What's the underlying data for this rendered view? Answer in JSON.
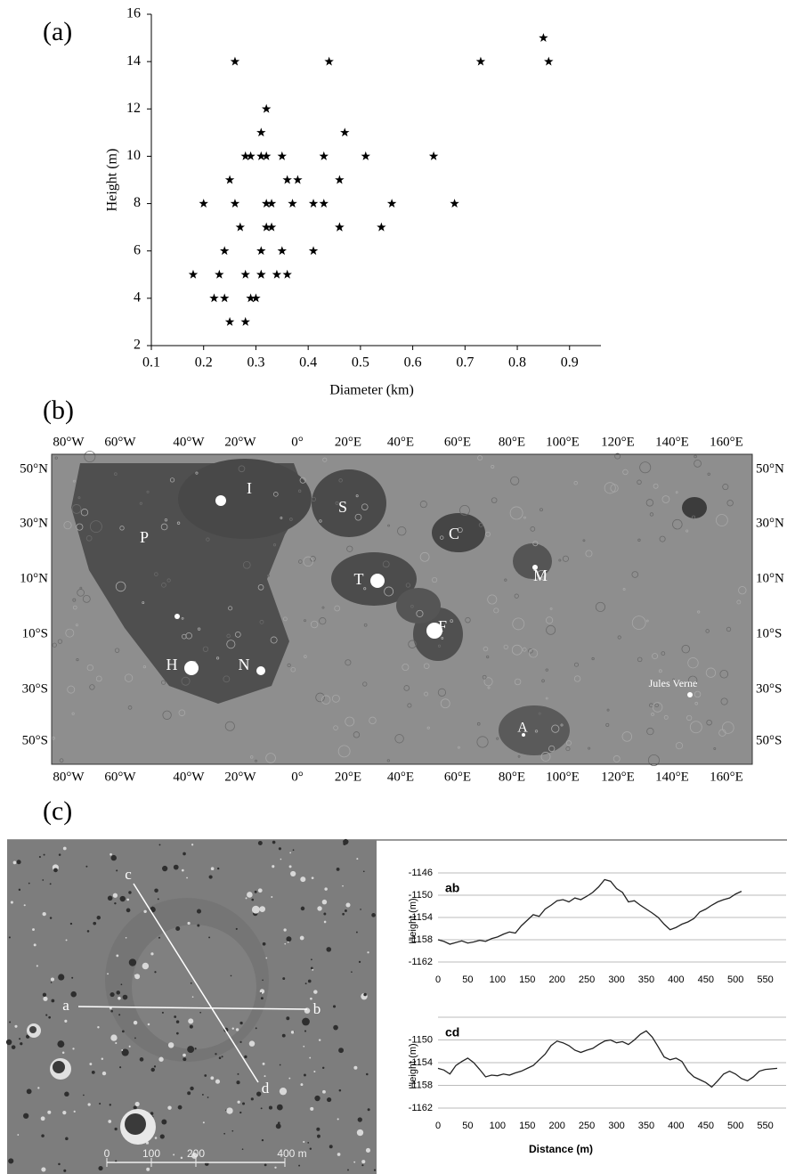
{
  "panel_labels": [
    "(a)",
    "(b)",
    "(c)"
  ],
  "chart_data": [
    {
      "type": "scatter",
      "x_label": "Diameter (km)",
      "y_label": "Height (m)",
      "marker": "star",
      "color": "#000000",
      "x": [
        0.26,
        0.44,
        0.73,
        0.85,
        0.86,
        0.32,
        0.31,
        0.47,
        0.28,
        0.29,
        0.31,
        0.32,
        0.35,
        0.43,
        0.51,
        0.64,
        0.25,
        0.36,
        0.38,
        0.46,
        0.2,
        0.26,
        0.32,
        0.33,
        0.37,
        0.41,
        0.43,
        0.56,
        0.68,
        0.27,
        0.32,
        0.33,
        0.46,
        0.46,
        0.54,
        0.24,
        0.31,
        0.35,
        0.41,
        0.18,
        0.23,
        0.28,
        0.31,
        0.31,
        0.34,
        0.36,
        0.22,
        0.24,
        0.29,
        0.3,
        0.25,
        0.28
      ],
      "values": [
        14,
        14,
        14,
        15,
        14,
        12,
        11,
        11,
        10,
        10,
        10,
        10,
        10,
        10,
        10,
        10,
        9,
        9,
        9,
        9,
        8,
        8,
        8,
        8,
        8,
        8,
        8,
        8,
        8,
        7,
        7,
        7,
        7,
        7,
        7,
        6,
        6,
        6,
        6,
        5,
        5,
        5,
        5,
        5,
        5,
        5,
        4,
        4,
        4,
        4,
        3,
        3
      ],
      "xlim": [
        0.1,
        0.96
      ],
      "xticks": [
        0.1,
        0.2,
        0.3,
        0.4,
        0.5,
        0.6,
        0.7,
        0.8,
        0.9
      ],
      "ylim": [
        2,
        16
      ],
      "yticks": [
        2,
        4,
        6,
        8,
        10,
        12,
        14,
        16
      ],
      "grid": false
    },
    {
      "type": "line",
      "title": "ab",
      "y_label": "Height (m)",
      "color": "#222222",
      "x": [
        0,
        10,
        20,
        30,
        40,
        50,
        60,
        70,
        80,
        90,
        100,
        110,
        120,
        130,
        140,
        150,
        160,
        170,
        180,
        190,
        200,
        210,
        220,
        230,
        240,
        250,
        260,
        270,
        280,
        290,
        300,
        310,
        320,
        330,
        340,
        350,
        360,
        370,
        380,
        390,
        400,
        410,
        420,
        430,
        440,
        450,
        460,
        470,
        480,
        490,
        500,
        510
      ],
      "values": [
        -1158,
        -1158.3,
        -1158.8,
        -1158.5,
        -1158.2,
        -1158.6,
        -1158.4,
        -1158.1,
        -1158.3,
        -1157.8,
        -1157.5,
        -1157,
        -1156.6,
        -1156.8,
        -1155.5,
        -1154.5,
        -1153.5,
        -1153.8,
        -1152.5,
        -1151.8,
        -1151,
        -1150.8,
        -1151.2,
        -1150.5,
        -1150.8,
        -1150.2,
        -1149.5,
        -1148.5,
        -1147.2,
        -1147.5,
        -1148.8,
        -1149.5,
        -1151.2,
        -1151,
        -1151.8,
        -1152.5,
        -1153.2,
        -1154,
        -1155.2,
        -1156.2,
        -1155.8,
        -1155.2,
        -1154.8,
        -1154.2,
        -1153,
        -1152.5,
        -1151.8,
        -1151.2,
        -1150.8,
        -1150.5,
        -1149.8,
        -1149.3
      ],
      "xlim": [
        0,
        585
      ],
      "xticks": [
        0,
        50,
        100,
        150,
        200,
        250,
        300,
        350,
        400,
        450,
        500,
        550
      ],
      "ylim": [
        -1162,
        -1146
      ],
      "yticks": [
        -1146,
        -1150,
        -1154,
        -1158,
        -1162
      ],
      "grid": true
    },
    {
      "type": "line",
      "title": "cd",
      "y_label": "Height (m)",
      "x_label": "Distance (m)",
      "color": "#222222",
      "x": [
        0,
        10,
        20,
        30,
        40,
        50,
        60,
        70,
        80,
        90,
        100,
        110,
        120,
        130,
        140,
        150,
        160,
        170,
        180,
        190,
        200,
        210,
        220,
        230,
        240,
        250,
        260,
        270,
        280,
        290,
        300,
        310,
        320,
        330,
        340,
        350,
        360,
        370,
        380,
        390,
        400,
        410,
        420,
        430,
        440,
        450,
        460,
        470,
        480,
        490,
        500,
        510,
        520,
        530,
        540,
        550,
        560,
        570
      ],
      "values": [
        -1155,
        -1155.3,
        -1156,
        -1154.5,
        -1153.8,
        -1153.2,
        -1154,
        -1155.2,
        -1156.5,
        -1156.2,
        -1156.3,
        -1156,
        -1156.2,
        -1155.8,
        -1155.5,
        -1155,
        -1154.5,
        -1153.5,
        -1152.5,
        -1151,
        -1150.2,
        -1150.5,
        -1151,
        -1151.8,
        -1152.2,
        -1151.8,
        -1151.5,
        -1150.8,
        -1150.2,
        -1150,
        -1150.5,
        -1150.3,
        -1150.8,
        -1150,
        -1149,
        -1148.4,
        -1149.5,
        -1151.2,
        -1153,
        -1153.5,
        -1153.2,
        -1153.8,
        -1155.5,
        -1156.5,
        -1157,
        -1157.5,
        -1158.3,
        -1157.2,
        -1156,
        -1155.5,
        -1156,
        -1156.8,
        -1157.2,
        -1156.5,
        -1155.5,
        -1155.2,
        -1155.1,
        -1155
      ],
      "xlim": [
        0,
        585
      ],
      "xticks": [
        0,
        50,
        100,
        150,
        200,
        250,
        300,
        350,
        400,
        450,
        500,
        550
      ],
      "ylim": [
        -1162,
        -1146
      ],
      "yticks": [
        -1150,
        -1154,
        -1158,
        -1162
      ],
      "grid": true
    }
  ],
  "map": {
    "lon_labels": [
      "80°W",
      "60°W",
      "40°W",
      "20°W",
      "0°",
      "20°E",
      "40°E",
      "60°E",
      "80°E",
      "100°E",
      "120°E",
      "140°E",
      "160°E"
    ],
    "lat_labels": [
      "50°N",
      "30°N",
      "10°N",
      "10°S",
      "30°S",
      "50°S"
    ],
    "features": [
      "I",
      "S",
      "P",
      "C",
      "T",
      "M",
      "F",
      "H",
      "N",
      "A",
      "Jules Verne"
    ]
  },
  "photo": {
    "points": [
      "a",
      "b",
      "c",
      "d"
    ],
    "scale": [
      "0",
      "100",
      "200",
      "400 m"
    ]
  }
}
